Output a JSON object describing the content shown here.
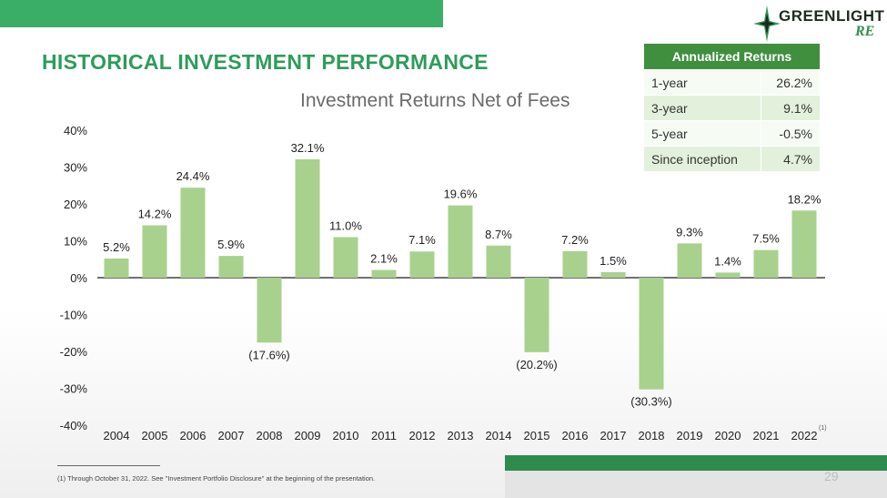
{
  "page": {
    "title": "HISTORICAL INVESTMENT PERFORMANCE",
    "page_number": "29",
    "footnote": "(1) Through October 31, 2022.  See \"Investment Portfolio Disclosure\" at the beginning of the presentation."
  },
  "logo": {
    "word": "GREENLIGHT",
    "suffix": "RE"
  },
  "table": {
    "header": "Annualized Returns",
    "rows": [
      {
        "label": "1-year",
        "value": "26.2%"
      },
      {
        "label": "3-year",
        "value": "9.1%"
      },
      {
        "label": "5-year",
        "value": "-0.5%"
      },
      {
        "label": "Since inception",
        "value": "4.7%"
      }
    ]
  },
  "colors": {
    "bar": "#a9d18e",
    "accent": "#2e9c5a",
    "table_header": "#3f8f3f"
  },
  "chart_data": {
    "type": "bar",
    "title": "Investment Returns Net of Fees",
    "categories": [
      "2004",
      "2005",
      "2006",
      "2007",
      "2008",
      "2009",
      "2010",
      "2011",
      "2012",
      "2013",
      "2014",
      "2015",
      "2016",
      "2017",
      "2018",
      "2019",
      "2020",
      "2021",
      "2022"
    ],
    "values": [
      5.2,
      14.2,
      24.4,
      5.9,
      -17.6,
      32.1,
      11.0,
      2.1,
      7.1,
      19.6,
      8.7,
      -20.2,
      7.2,
      1.5,
      -30.3,
      9.3,
      1.4,
      7.5,
      18.2
    ],
    "data_labels": [
      "5.2%",
      "14.2%",
      "24.4%",
      "5.9%",
      "(17.6%)",
      "32.1%",
      "11.0%",
      "2.1%",
      "7.1%",
      "19.6%",
      "8.7%",
      "(20.2%)",
      "7.2%",
      "1.5%",
      "(30.3%)",
      "9.3%",
      "1.4%",
      "7.5%",
      "18.2%"
    ],
    "ylim": [
      -40,
      40
    ],
    "yticks": [
      40,
      30,
      20,
      10,
      0,
      -10,
      -20,
      -30,
      -40
    ],
    "ytick_labels": [
      "40%",
      "30%",
      "20%",
      "10%",
      "0%",
      "-10%",
      "-20%",
      "-30%",
      "-40%"
    ],
    "footnote_marker": "(1)",
    "grid": false,
    "xlabel": "",
    "ylabel": ""
  }
}
